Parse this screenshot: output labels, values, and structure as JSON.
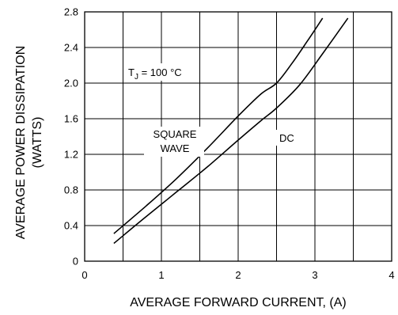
{
  "chart_data": {
    "type": "line",
    "xlabel": "AVERAGE FORWARD CURRENT,  (A)",
    "ylabel_line1": "AVERAGE POWER DISSIPATION",
    "ylabel_line2": "(WATTS)",
    "xlim": [
      0,
      4
    ],
    "ylim": [
      0,
      2.8
    ],
    "x_ticks": [
      0,
      1,
      2,
      3,
      4
    ],
    "x_tick_labels": [
      "0",
      "1",
      "2",
      "3",
      "4"
    ],
    "y_ticks": [
      0,
      0.4,
      0.8,
      1.2,
      1.6,
      2.0,
      2.4,
      2.8
    ],
    "y_tick_labels": [
      "0",
      "0.4",
      "0.8",
      "1.2",
      "1.6",
      "2.0",
      "2.4",
      "2.8"
    ],
    "grid": true,
    "series": [
      {
        "name": "SQUARE WAVE",
        "points": [
          [
            0.38,
            0.31
          ],
          [
            0.8,
            0.62
          ],
          [
            1.2,
            0.93
          ],
          [
            1.6,
            1.27
          ],
          [
            2.0,
            1.63
          ],
          [
            2.3,
            1.88
          ],
          [
            2.5,
            2.0
          ],
          [
            2.7,
            2.22
          ],
          [
            2.9,
            2.47
          ],
          [
            3.1,
            2.73
          ]
        ]
      },
      {
        "name": "DC",
        "points": [
          [
            0.38,
            0.2
          ],
          [
            0.8,
            0.5
          ],
          [
            1.2,
            0.78
          ],
          [
            1.6,
            1.06
          ],
          [
            2.0,
            1.36
          ],
          [
            2.3,
            1.58
          ],
          [
            2.5,
            1.72
          ],
          [
            2.8,
            1.98
          ],
          [
            3.1,
            2.33
          ],
          [
            3.43,
            2.73
          ]
        ]
      }
    ],
    "annotations": {
      "tj_main": "T",
      "tj_sub": "J",
      "tj_value": " = 100 °C",
      "square_line1": "SQUARE",
      "square_line2": "WAVE",
      "dc": "DC"
    }
  }
}
